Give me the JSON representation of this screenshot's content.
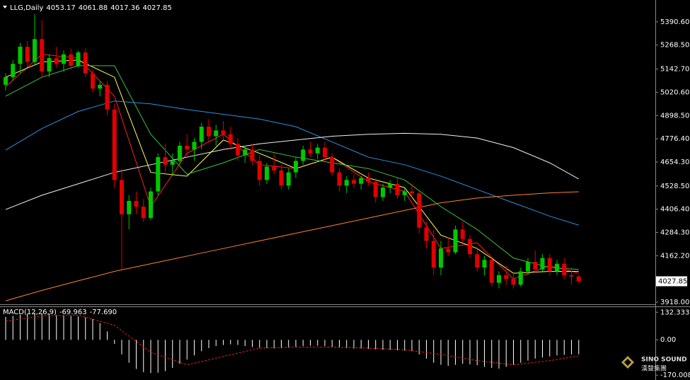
{
  "chart_data": [
    {
      "type": "candlestick",
      "title": "LLG,Daily",
      "up_color": "#00c800",
      "down_color": "#e00000",
      "open": [
        5060,
        5100,
        5170,
        5260,
        5180,
        5300,
        5130,
        5200,
        5170,
        5220,
        5160,
        5230,
        5120,
        5040,
        5060,
        4930,
        4560,
        4380,
        4450,
        4420,
        4360,
        4500,
        4680,
        4640,
        4660,
        4740,
        4720,
        4760,
        4840,
        4790,
        4820,
        4800,
        4750,
        4690,
        4720,
        4660,
        4560,
        4630,
        4610,
        4530,
        4600,
        4660,
        4720,
        4700,
        4730,
        4680,
        4600,
        4530,
        4560,
        4540,
        4570,
        4550,
        4470,
        4520,
        4540,
        4480,
        4500,
        4490,
        4310,
        4240,
        4100,
        4200,
        4180,
        4300,
        4250,
        4170,
        4100,
        4140,
        4020,
        4060,
        4040,
        4010,
        4080,
        4130,
        4090,
        4150,
        4080,
        4120,
        4060,
        4053.17
      ],
      "high": [
        5120,
        5190,
        5280,
        5290,
        5430,
        5400,
        5220,
        5260,
        5240,
        5250,
        5240,
        5250,
        5140,
        5080,
        5080,
        4960,
        4620,
        4480,
        4500,
        4460,
        4520,
        4700,
        4750,
        4700,
        4760,
        4800,
        4780,
        4860,
        4880,
        4850,
        4870,
        4840,
        4780,
        4740,
        4750,
        4690,
        4650,
        4700,
        4640,
        4620,
        4680,
        4740,
        4760,
        4750,
        4760,
        4700,
        4620,
        4580,
        4590,
        4580,
        4600,
        4570,
        4540,
        4560,
        4570,
        4520,
        4540,
        4500,
        4340,
        4300,
        4240,
        4260,
        4320,
        4340,
        4270,
        4200,
        4160,
        4150,
        4080,
        4110,
        4070,
        4100,
        4150,
        4190,
        4170,
        4170,
        4140,
        4150,
        4100,
        4061.88
      ],
      "low": [
        5030,
        5080,
        5120,
        5150,
        5160,
        5100,
        5100,
        5150,
        5130,
        5140,
        5150,
        5100,
        5020,
        5000,
        4900,
        4520,
        4090,
        4300,
        4380,
        4340,
        4350,
        4480,
        4600,
        4580,
        4640,
        4690,
        4660,
        4720,
        4760,
        4740,
        4770,
        4720,
        4660,
        4650,
        4640,
        4530,
        4540,
        4590,
        4510,
        4510,
        4570,
        4640,
        4680,
        4670,
        4660,
        4580,
        4500,
        4490,
        4520,
        4510,
        4530,
        4440,
        4450,
        4490,
        4460,
        4450,
        4470,
        4280,
        4200,
        4060,
        4060,
        4160,
        4170,
        4230,
        4150,
        4080,
        4060,
        4000,
        3990,
        4010,
        3990,
        4000,
        4060,
        4070,
        4080,
        4060,
        4060,
        4040,
        4010,
        4017.36
      ],
      "close": [
        5100,
        5170,
        5260,
        5180,
        5300,
        5130,
        5200,
        5170,
        5220,
        5160,
        5230,
        5120,
        5040,
        5060,
        4930,
        4560,
        4380,
        4450,
        4420,
        4360,
        4500,
        4680,
        4640,
        4660,
        4740,
        4720,
        4760,
        4840,
        4790,
        4820,
        4800,
        4750,
        4690,
        4720,
        4660,
        4560,
        4630,
        4610,
        4530,
        4600,
        4660,
        4720,
        4700,
        4730,
        4680,
        4600,
        4530,
        4560,
        4540,
        4570,
        4550,
        4470,
        4520,
        4540,
        4480,
        4500,
        4490,
        4310,
        4240,
        4100,
        4200,
        4180,
        4300,
        4250,
        4170,
        4100,
        4140,
        4020,
        4060,
        4040,
        4010,
        4080,
        4130,
        4090,
        4150,
        4080,
        4120,
        4060,
        4053,
        4027.85
      ],
      "overlays": [
        {
          "color": "#ff2020",
          "x": [
            0,
            5,
            10,
            15,
            20,
            25,
            30,
            35,
            40,
            45,
            50,
            55,
            60,
            65,
            70,
            75,
            79
          ],
          "values": [
            5050,
            5220,
            5200,
            5000,
            4420,
            4700,
            4800,
            4640,
            4620,
            4680,
            4550,
            4500,
            4200,
            4230,
            4040,
            4110,
            4070
          ]
        },
        {
          "color": "#ffff60",
          "x": [
            0,
            5,
            10,
            15,
            20,
            25,
            30,
            35,
            40,
            45,
            50,
            55,
            60,
            65,
            70,
            75,
            79
          ],
          "values": [
            5100,
            5180,
            5190,
            5100,
            4600,
            4580,
            4770,
            4700,
            4620,
            4680,
            4570,
            4520,
            4270,
            4200,
            4070,
            4080,
            4080
          ]
        },
        {
          "color": "#40c040",
          "x": [
            0,
            5,
            10,
            15,
            20,
            25,
            30,
            35,
            40,
            45,
            50,
            55,
            60,
            65,
            70,
            75,
            79
          ],
          "values": [
            5000,
            5100,
            5160,
            5160,
            4800,
            4590,
            4650,
            4720,
            4680,
            4650,
            4620,
            4560,
            4420,
            4300,
            4150,
            4100,
            4090
          ]
        },
        {
          "color": "#2f8fe0",
          "x": [
            0,
            5,
            10,
            15,
            20,
            25,
            30,
            35,
            40,
            45,
            50,
            55,
            60,
            65,
            70,
            75,
            79
          ],
          "values": [
            4717,
            4830,
            4920,
            4975,
            4960,
            4930,
            4905,
            4880,
            4840,
            4760,
            4680,
            4640,
            4580,
            4510,
            4440,
            4370,
            4323
          ]
        },
        {
          "color": "#f0f0f0",
          "x": [
            0,
            5,
            10,
            15,
            20,
            25,
            30,
            35,
            40,
            45,
            50,
            55,
            60,
            65,
            70,
            75,
            79
          ],
          "values": [
            4405,
            4480,
            4540,
            4600,
            4640,
            4680,
            4720,
            4750,
            4770,
            4790,
            4800,
            4805,
            4800,
            4780,
            4730,
            4650,
            4565
          ]
        },
        {
          "color": "#ff8030",
          "x": [
            0,
            5,
            10,
            15,
            20,
            25,
            30,
            35,
            40,
            45,
            50,
            55,
            60,
            65,
            70,
            75,
            79
          ],
          "values": [
            3925,
            3980,
            4030,
            4080,
            4120,
            4160,
            4200,
            4240,
            4280,
            4320,
            4360,
            4400,
            4440,
            4465,
            4480,
            4492,
            4498
          ]
        }
      ],
      "ylim": [
        3907,
        5498
      ],
      "yticks": [
        {
          "value": 5390.6,
          "label": "5390.60"
        },
        {
          "value": 5268.5,
          "label": "5268.50"
        },
        {
          "value": 5142.7,
          "label": "5142.70"
        },
        {
          "value": 5020.6,
          "label": "5020.60"
        },
        {
          "value": 4898.5,
          "label": "4898.50"
        },
        {
          "value": 4776.4,
          "label": "4776.40"
        },
        {
          "value": 4654.3,
          "label": "4654.30"
        },
        {
          "value": 4528.5,
          "label": "4528.50"
        },
        {
          "value": 4406.4,
          "label": "4406.40"
        },
        {
          "value": 4284.3,
          "label": "4284.30"
        },
        {
          "value": 4162.2,
          "label": "4162.20"
        },
        {
          "value": 3918,
          "label": "3918.00"
        }
      ]
    },
    {
      "type": "macd",
      "title": "MACD(12,26,9)",
      "histogram": {
        "color": "#ffffff",
        "values": [
          110,
          115,
          120,
          125,
          130,
          128,
          125,
          120,
          118,
          115,
          112,
          108,
          100,
          80,
          40,
          -20,
          -70,
          -110,
          -140,
          -155,
          -160,
          -158,
          -150,
          -135,
          -115,
          -95,
          -75,
          -55,
          -40,
          -30,
          -25,
          -22,
          -25,
          -30,
          -35,
          -38,
          -40,
          -42,
          -40,
          -38,
          -35,
          -30,
          -28,
          -28,
          -30,
          -35,
          -38,
          -40,
          -42,
          -42,
          -44,
          -46,
          -48,
          -48,
          -50,
          -52,
          -55,
          -70,
          -90,
          -110,
          -120,
          -125,
          -120,
          -115,
          -118,
          -122,
          -130,
          -135,
          -138,
          -130,
          -120,
          -110,
          -100,
          -90,
          -85,
          -80,
          -75,
          -72,
          -70,
          -69.963
        ]
      },
      "signal": {
        "color": "#e02020",
        "x": [
          0,
          5,
          10,
          15,
          20,
          25,
          30,
          35,
          40,
          45,
          50,
          55,
          60,
          65,
          70,
          75,
          79
        ],
        "values": [
          90,
          115,
          118,
          70,
          -60,
          -120,
          -80,
          -40,
          -35,
          -35,
          -40,
          -48,
          -70,
          -100,
          -120,
          -100,
          -77.69
        ],
        "last_label": "-77.690"
      },
      "ylim": [
        -193,
        157
      ],
      "yticks": [
        132.333,
        {
          "value": 0,
          "label": "0.00"
        },
        -170.008
      ]
    },
    {
      "type": "watermark",
      "title": "SINO SOUND",
      "subtitle": "漢聲集團"
    }
  ]
}
